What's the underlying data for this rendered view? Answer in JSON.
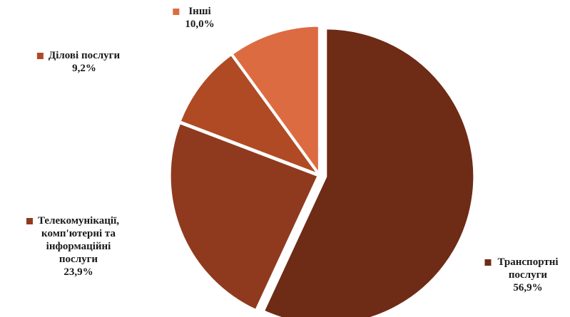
{
  "chart_data": {
    "type": "pie",
    "title": "",
    "slices": [
      {
        "label": "Транспортні послуги",
        "label_lines": [
          "Транспортні",
          "послуги"
        ],
        "value": 56.9,
        "value_text": "56,9%",
        "color": "#6e2b16"
      },
      {
        "label": "Телекомунікації, комп'ютерні та інформаційні послуги",
        "label_lines": [
          "Телекомунікації,",
          "комп'ютерні та",
          "інформаційні",
          "послуги"
        ],
        "value": 23.9,
        "value_text": "23,9%",
        "color": "#8f3a1e"
      },
      {
        "label": "Ділові послуги",
        "label_lines": [
          "Ділові послуги"
        ],
        "value": 9.2,
        "value_text": "9,2%",
        "color": "#b04a24"
      },
      {
        "label": "Інші",
        "label_lines": [
          "Інші"
        ],
        "value": 10.0,
        "value_text": "10,0%",
        "color": "#dd6b42"
      }
    ]
  }
}
